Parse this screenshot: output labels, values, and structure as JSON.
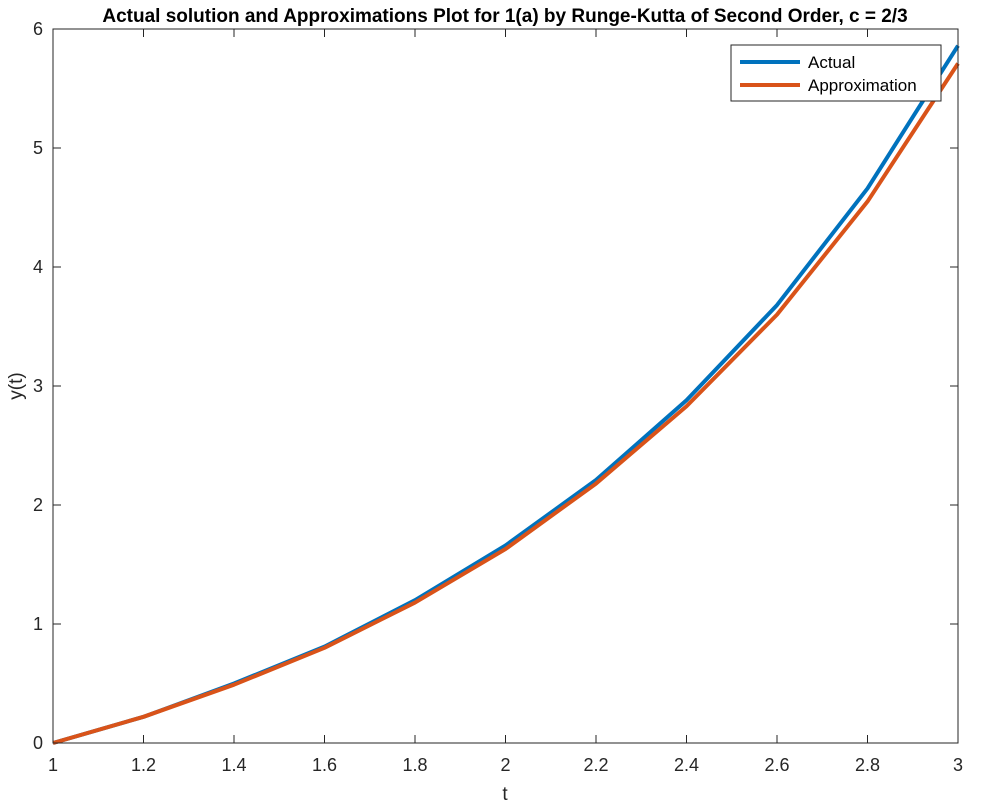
{
  "chart_data": {
    "type": "line",
    "title": "Actual solution and Approximations Plot for 1(a) by Runge-Kutta of Second Order, c = 2/3",
    "xlabel": "t",
    "ylabel": "y(t)",
    "xlim": [
      1,
      3
    ],
    "ylim": [
      0,
      6
    ],
    "x_ticks": [
      "1",
      "1.2",
      "1.4",
      "1.6",
      "1.8",
      "2",
      "2.2",
      "2.4",
      "2.6",
      "2.8",
      "3"
    ],
    "y_ticks": [
      "0",
      "1",
      "2",
      "3",
      "4",
      "5",
      "6"
    ],
    "grid": false,
    "legend_position": "top-right",
    "x": [
      1.0,
      1.2,
      1.4,
      1.6,
      1.8,
      2.0,
      2.2,
      2.4,
      2.6,
      2.8,
      3.0
    ],
    "series": [
      {
        "name": "Actual",
        "color": "#0072BD",
        "values": [
          0,
          0.22,
          0.5,
          0.81,
          1.2,
          1.66,
          2.21,
          2.88,
          3.68,
          4.66,
          5.86
        ]
      },
      {
        "name": "Approximation",
        "color": "#D95319",
        "values": [
          0,
          0.22,
          0.49,
          0.8,
          1.18,
          1.63,
          2.18,
          2.83,
          3.6,
          4.55,
          5.71
        ]
      }
    ]
  }
}
